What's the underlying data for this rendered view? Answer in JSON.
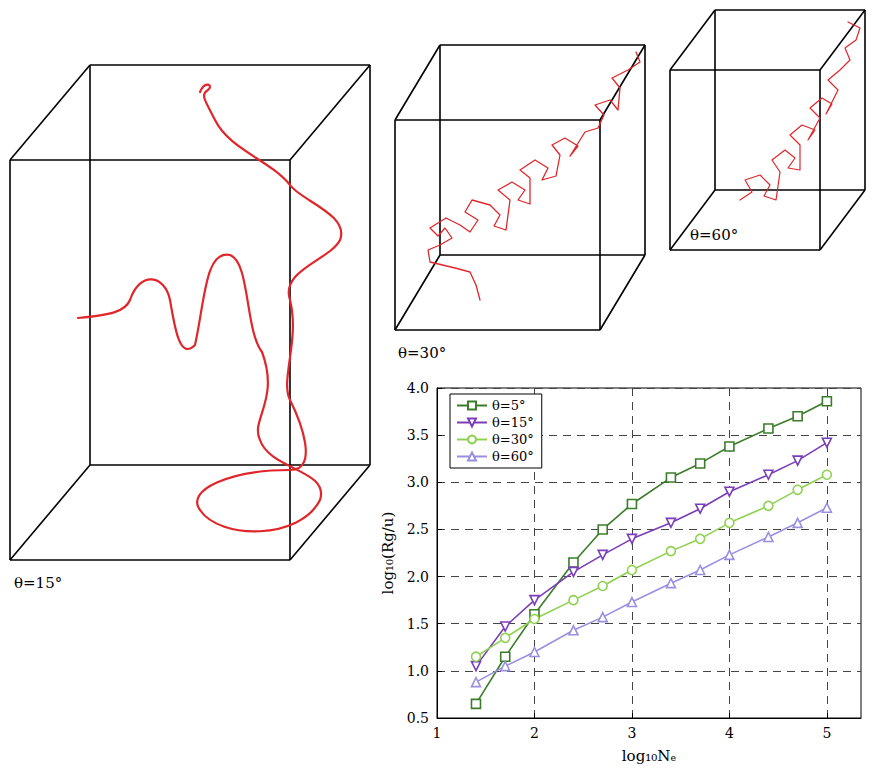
{
  "chart_data": {
    "type": "line",
    "x_label": "log₁₀Nₑ",
    "y_label": "log₁₀(Rg/u)",
    "x": [
      1.4,
      1.7,
      2.0,
      2.4,
      2.7,
      3.0,
      3.4,
      3.7,
      4.0,
      4.4,
      4.7,
      5.0
    ],
    "series": [
      {
        "name": "θ=5°",
        "color": "#3b7d2a",
        "marker": "square",
        "line_style": "solid",
        "values": [
          0.65,
          1.15,
          1.6,
          2.15,
          2.5,
          2.77,
          3.05,
          3.2,
          3.38,
          3.57,
          3.7,
          3.86
        ]
      },
      {
        "name": "θ=15°",
        "color": "#7a3fb8",
        "marker": "triangle_down",
        "line_style": "solid",
        "values": [
          1.05,
          1.47,
          1.75,
          2.05,
          2.23,
          2.4,
          2.57,
          2.72,
          2.9,
          3.08,
          3.23,
          3.42
        ]
      },
      {
        "name": "θ=30°",
        "color": "#8fd150",
        "marker": "circle",
        "line_style": "solid",
        "values": [
          1.15,
          1.35,
          1.55,
          1.75,
          1.9,
          2.07,
          2.27,
          2.4,
          2.57,
          2.75,
          2.92,
          3.08
        ]
      },
      {
        "name": "θ=60°",
        "color": "#9a8fe0",
        "marker": "triangle",
        "line_style": "solid",
        "values": [
          0.88,
          1.05,
          1.2,
          1.43,
          1.57,
          1.73,
          1.93,
          2.07,
          2.23,
          2.42,
          2.57,
          2.73
        ]
      }
    ],
    "xlim": [
      1,
      5.35
    ],
    "xticks": [
      1,
      2,
      3,
      4,
      5
    ],
    "ylim": [
      0.5,
      4
    ],
    "yticks": [
      0.5,
      {
        "value": 1,
        "label": "1.0"
      },
      1.5,
      {
        "value": 2,
        "label": "2.0"
      },
      2.5,
      {
        "value": 3,
        "label": "3.0"
      },
      3.5,
      {
        "value": 4,
        "label": "4.0"
      }
    ],
    "grid": true,
    "legend": "upper left"
  },
  "illustrations": [
    {
      "label": "θ=15°"
    },
    {
      "label": "θ=30°"
    },
    {
      "label": "θ=60°"
    }
  ]
}
